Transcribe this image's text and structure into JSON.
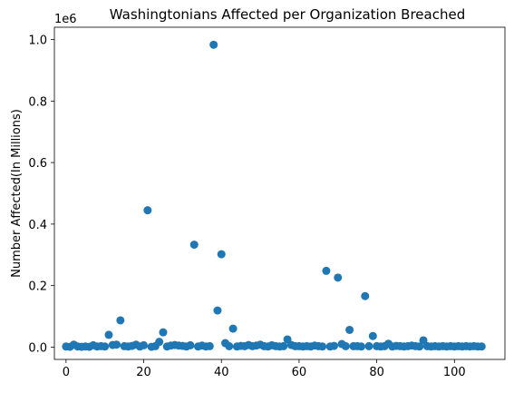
{
  "chart_data": {
    "type": "scatter",
    "title": "Washingtonians Affected per Organization Breached",
    "xlabel": "",
    "ylabel": "Number Affected(In Millions)",
    "offset_text": "1e6",
    "xlim": [
      -3,
      113
    ],
    "ylim": [
      -0.04,
      1.04
    ],
    "x_ticks": [
      0,
      20,
      40,
      60,
      80,
      100
    ],
    "x_tick_labels": [
      "0",
      "20",
      "40",
      "60",
      "80",
      "100"
    ],
    "y_ticks": [
      0.0,
      0.2,
      0.4,
      0.6,
      0.8,
      1.0
    ],
    "y_tick_labels": [
      "0.0",
      "0.2",
      "0.4",
      "0.6",
      "0.8",
      "1.0"
    ],
    "grid": false,
    "marker_color": "#1f77b4",
    "x": [
      0,
      1,
      2,
      3,
      4,
      5,
      6,
      7,
      8,
      9,
      10,
      11,
      12,
      13,
      14,
      15,
      16,
      17,
      18,
      19,
      20,
      21,
      22,
      23,
      24,
      25,
      26,
      27,
      28,
      29,
      30,
      31,
      32,
      33,
      34,
      35,
      36,
      37,
      38,
      39,
      40,
      41,
      42,
      43,
      44,
      45,
      46,
      47,
      48,
      49,
      50,
      51,
      52,
      53,
      54,
      55,
      56,
      57,
      58,
      59,
      60,
      61,
      62,
      63,
      64,
      65,
      66,
      67,
      68,
      69,
      70,
      71,
      72,
      73,
      74,
      75,
      76,
      77,
      78,
      79,
      80,
      81,
      82,
      83,
      84,
      85,
      86,
      87,
      88,
      89,
      90,
      91,
      92,
      93,
      94,
      95,
      96,
      97,
      98,
      99,
      100,
      101,
      102,
      103,
      104,
      105,
      106,
      107
    ],
    "y": [
      0.002,
      0.001,
      0.008,
      0.002,
      0.001,
      0.002,
      0.001,
      0.006,
      0.002,
      0.003,
      0.002,
      0.04,
      0.007,
      0.008,
      0.087,
      0.003,
      0.002,
      0.004,
      0.008,
      0.002,
      0.006,
      0.445,
      0.001,
      0.003,
      0.017,
      0.048,
      0.002,
      0.005,
      0.007,
      0.005,
      0.004,
      0.002,
      0.006,
      0.333,
      0.002,
      0.005,
      0.002,
      0.003,
      0.983,
      0.119,
      0.302,
      0.013,
      0.003,
      0.06,
      0.002,
      0.004,
      0.003,
      0.007,
      0.003,
      0.005,
      0.008,
      0.003,
      0.002,
      0.006,
      0.003,
      0.002,
      0.003,
      0.025,
      0.007,
      0.003,
      0.003,
      0.002,
      0.003,
      0.002,
      0.005,
      0.003,
      0.002,
      0.248,
      0.002,
      0.004,
      0.226,
      0.01,
      0.003,
      0.056,
      0.003,
      0.003,
      0.002,
      0.166,
      0.003,
      0.036,
      0.003,
      0.002,
      0.003,
      0.011,
      0.002,
      0.004,
      0.003,
      0.002,
      0.003,
      0.005,
      0.003,
      0.002,
      0.022,
      0.003,
      0.002,
      0.003,
      0.002,
      0.003,
      0.002,
      0.003,
      0.002,
      0.003,
      0.002,
      0.003,
      0.002,
      0.003,
      0.002,
      0.002
    ]
  }
}
